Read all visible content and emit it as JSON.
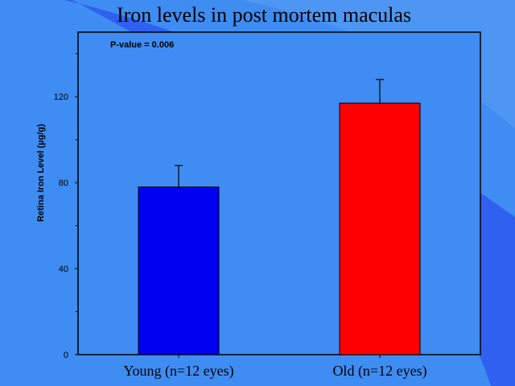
{
  "chart_data": {
    "type": "bar",
    "title": "Iron levels in post mortem maculas",
    "categories": [
      "Young (n=12 eyes)",
      "Old (n=12 eyes)"
    ],
    "values": [
      78,
      117
    ],
    "error_plus": [
      10,
      11
    ],
    "bar_colors": [
      "#0000f0",
      "#ff0000"
    ],
    "ylabel": "Retina Iron Level (µg/g)",
    "xlabel": "",
    "ylim": [
      0,
      150
    ],
    "yticks": [
      0,
      40,
      80,
      120
    ],
    "yticks_minor": [
      20,
      60,
      100,
      140
    ],
    "annotation": "P-value = 0.006",
    "grid": false,
    "legend": "none"
  }
}
